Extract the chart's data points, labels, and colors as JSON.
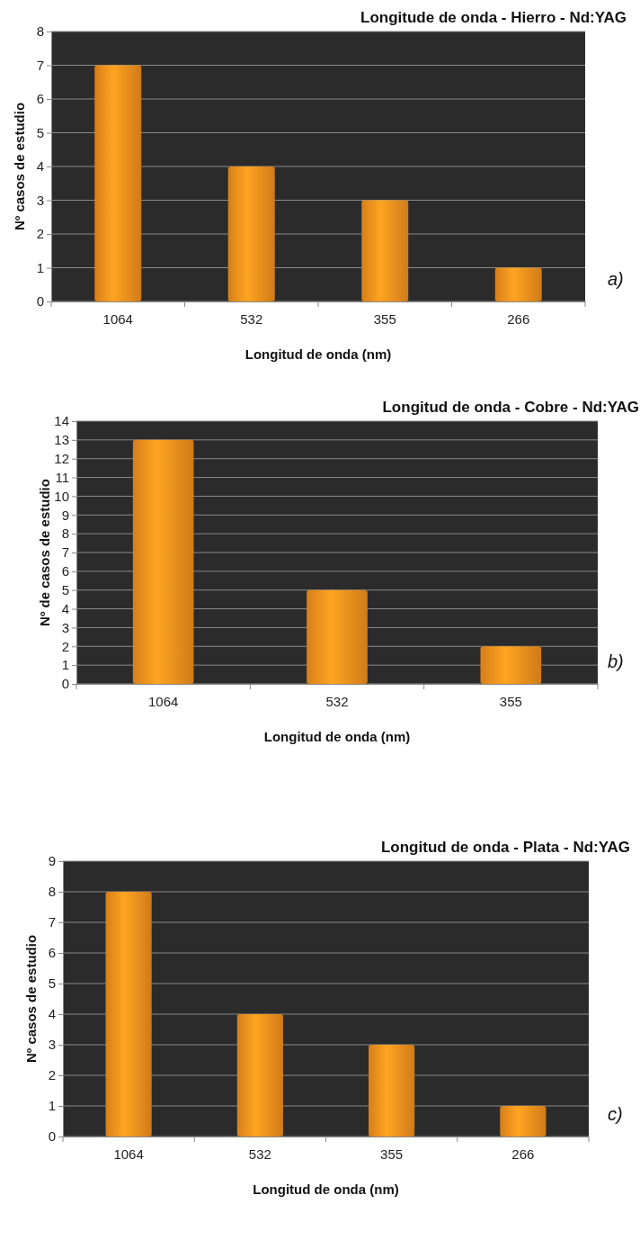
{
  "chart_data": [
    {
      "type": "bar",
      "title": "Longitude de onda - Hierro - Nd:YAG",
      "xlabel": "Longitud de onda (nm)",
      "ylabel": "Nº casos de estudio",
      "categories": [
        "1064",
        "532",
        "355",
        "266"
      ],
      "values": [
        7,
        4,
        3,
        1
      ],
      "color": "#f7931e",
      "ylim": [
        0,
        8
      ],
      "yticks": [
        0,
        1,
        2,
        3,
        4,
        5,
        6,
        7,
        8
      ],
      "grid": "y",
      "annotations": [
        "a)"
      ]
    },
    {
      "type": "bar",
      "title": "Longitud de onda - Cobre - Nd:YAG",
      "xlabel": "Longitud  de onda (nm)",
      "ylabel": "Nº de casos de estudio",
      "categories": [
        "1064",
        "532",
        "355"
      ],
      "values": [
        13,
        5,
        2
      ],
      "color": "#f7931e",
      "ylim": [
        0,
        14
      ],
      "yticks": [
        0,
        1,
        2,
        3,
        4,
        5,
        6,
        7,
        8,
        9,
        10,
        11,
        12,
        13,
        14
      ],
      "grid": "y",
      "annotations": [
        "b)"
      ]
    },
    {
      "type": "bar",
      "title": "Longitud de onda - Plata - Nd:YAG",
      "xlabel": "Longitud de onda (nm)",
      "ylabel": "Nº casos de estudio",
      "categories": [
        "1064",
        "532",
        "355",
        "266"
      ],
      "values": [
        8,
        4,
        3,
        1
      ],
      "color": "#f7931e",
      "ylim": [
        0,
        9
      ],
      "yticks": [
        0,
        1,
        2,
        3,
        4,
        5,
        6,
        7,
        8,
        9
      ],
      "grid": "y",
      "annotations": [
        "c)"
      ]
    }
  ]
}
